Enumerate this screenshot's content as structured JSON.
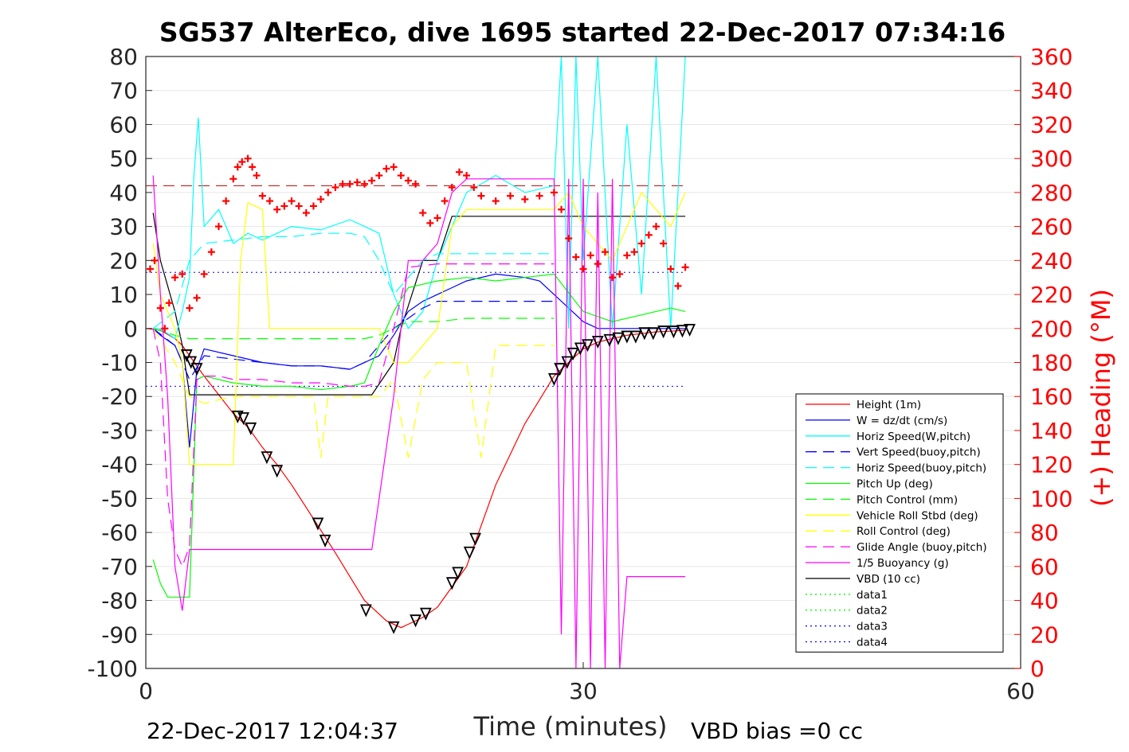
{
  "colors": {
    "height": "#ff0000",
    "w": "#0000ff",
    "horiz_w": "#00ffff",
    "pitch": "#00ff00",
    "roll": "#ffff00",
    "glide": "#ff00ff",
    "vbd": "#000000",
    "heading": "#ff0000",
    "grid": "#e6e6e6"
  },
  "chart_data": {
    "type": "line",
    "title": "SG537 AlterEco, dive 1695 started 22-Dec-2017 07:34:16",
    "xlabel": "Time (minutes)",
    "ylabel_right": "(+) Heading (°M)",
    "footer_left": "22-Dec-2017 12:04:37",
    "footer_right": "VBD bias =0 cc",
    "xlim": [
      0,
      60
    ],
    "ylim": [
      -100,
      80
    ],
    "ylim_right": [
      0,
      360
    ],
    "x_ticks": [
      0,
      30,
      60
    ],
    "y_ticks": [
      80,
      70,
      60,
      50,
      40,
      30,
      20,
      10,
      0,
      -10,
      -20,
      -30,
      -40,
      -50,
      -60,
      -70,
      -80,
      -90,
      -100
    ],
    "y_ticks_right": [
      360,
      340,
      320,
      300,
      280,
      260,
      240,
      220,
      200,
      180,
      160,
      140,
      120,
      100,
      80,
      60,
      40,
      20,
      0
    ],
    "grid": "horizontal",
    "legend_position": "lower-right",
    "legend": [
      {
        "label": "Height (1m)",
        "color": "#ff0000",
        "dash": "solid"
      },
      {
        "label": "W = dz/dt (cm/s)",
        "color": "#0000ff",
        "dash": "solid"
      },
      {
        "label": "Horiz Speed(W,pitch)",
        "color": "#00ffff",
        "dash": "solid"
      },
      {
        "label": "Vert Speed(buoy,pitch)",
        "color": "#0000ff",
        "dash": "dashed"
      },
      {
        "label": "Horiz Speed(buoy,pitch)",
        "color": "#00ffff",
        "dash": "dashed"
      },
      {
        "label": "Pitch Up (deg)",
        "color": "#00ff00",
        "dash": "solid"
      },
      {
        "label": "Pitch Control (mm)",
        "color": "#00ff00",
        "dash": "dashed"
      },
      {
        "label": "Vehicle Roll Stbd (deg)",
        "color": "#ffff00",
        "dash": "solid"
      },
      {
        "label": "Roll Control (deg)",
        "color": "#ffff00",
        "dash": "dashed"
      },
      {
        "label": "Glide Angle (buoy,pitch)",
        "color": "#ff00ff",
        "dash": "dashed"
      },
      {
        "label": "1/5 Buoyancy (g)",
        "color": "#ff00ff",
        "dash": "solid"
      },
      {
        "label": "VBD (10 cc)",
        "color": "#000000",
        "dash": "solid"
      },
      {
        "label": "data1",
        "color": "#00ff00",
        "dash": "dotted"
      },
      {
        "label": "data2",
        "color": "#00ff00",
        "dash": "dotted"
      },
      {
        "label": "data3",
        "color": "#0000ff",
        "dash": "dotted"
      },
      {
        "label": "data4",
        "color": "#0000ff",
        "dash": "dotted"
      }
    ],
    "series": [
      {
        "name": "Height (1m)",
        "color": "#ff0000",
        "dash": "solid",
        "x": [
          0,
          1,
          2,
          2.5,
          3,
          4,
          6,
          7,
          8,
          9,
          10,
          11.5,
          13,
          15,
          16.5,
          17.5,
          19,
          20,
          21,
          22,
          23,
          24,
          26,
          28,
          29,
          30,
          31,
          32,
          33,
          34,
          35,
          36,
          37
        ],
        "y": [
          0,
          -0.5,
          -3,
          -5,
          -8,
          -14,
          -25,
          -29,
          -35,
          -40,
          -46,
          -56,
          -66,
          -80,
          -86,
          -88,
          -85,
          -82,
          -76,
          -70,
          -58,
          -46,
          -28,
          -14,
          -10,
          -6,
          -4,
          -3,
          -2,
          -1.5,
          -1,
          -0.8,
          -0.5
        ]
      },
      {
        "name": "VBD (10 cc)",
        "color": "#000000",
        "dash": "solid",
        "x": [
          0.5,
          1,
          2,
          2.5,
          3,
          4,
          10,
          15,
          15.5,
          17,
          17.5,
          19,
          20,
          21,
          37
        ],
        "y": [
          34,
          20,
          5,
          -5,
          -19.5,
          -19.5,
          -19.5,
          -19.5,
          -19.5,
          -10,
          0,
          20,
          20,
          33,
          33
        ]
      },
      {
        "name": "W = dz/dt (cm/s)",
        "color": "#0000ff",
        "dash": "solid",
        "x": [
          0.5,
          1,
          2,
          2.5,
          3,
          3.5,
          4,
          6,
          8,
          10,
          12,
          14,
          15,
          16,
          17,
          18,
          19,
          20,
          21,
          22,
          24,
          26,
          27,
          28,
          29,
          30,
          31,
          32,
          34,
          36,
          37
        ],
        "y": [
          0,
          -2,
          -5,
          -10,
          -35,
          -12,
          -6,
          -8,
          -10,
          -11,
          -11,
          -12,
          -10,
          -8,
          -2,
          5,
          8,
          10,
          12,
          14,
          16,
          15,
          14,
          10,
          6,
          2,
          0,
          0,
          0,
          0,
          0
        ]
      },
      {
        "name": "Horiz Speed(W,pitch)",
        "color": "#00ffff",
        "dash": "solid",
        "x": [
          0.5,
          1,
          2,
          2.5,
          3,
          3.3,
          3.6,
          4,
          5,
          6,
          7,
          8,
          10,
          12,
          14,
          15,
          16,
          17,
          18,
          19,
          20,
          21,
          22,
          24,
          26,
          28,
          28.5,
          29,
          29.5,
          30,
          31,
          32,
          33,
          34,
          35,
          36,
          37
        ],
        "y": [
          0,
          0,
          -3,
          5,
          15,
          45,
          62,
          30,
          35,
          25,
          28,
          26,
          30,
          29,
          32,
          30,
          28,
          10,
          0,
          5,
          20,
          30,
          40,
          45,
          40,
          42,
          80,
          0,
          80,
          20,
          80,
          0,
          60,
          10,
          80,
          0,
          80
        ]
      },
      {
        "name": "Vert Speed(buoy,pitch)",
        "color": "#0000ff",
        "dash": "dashed",
        "x": [
          0.5,
          2,
          3,
          4,
          6,
          8,
          10,
          12,
          14,
          15,
          16,
          17,
          18,
          19,
          20,
          22,
          24,
          26,
          28
        ],
        "y": [
          0,
          -5,
          -15,
          -8,
          -9,
          -10,
          -11,
          -11,
          -12,
          -10,
          -5,
          0,
          3,
          6,
          8,
          8,
          8,
          8,
          8
        ]
      },
      {
        "name": "Horiz Speed(buoy,pitch)",
        "color": "#00ffff",
        "dash": "dashed",
        "x": [
          0.5,
          2,
          3,
          4,
          6,
          8,
          10,
          12,
          14,
          15,
          16,
          17,
          18,
          19,
          20,
          22,
          24,
          26,
          28
        ],
        "y": [
          0,
          5,
          20,
          25,
          26,
          27,
          27,
          28,
          28,
          27,
          20,
          10,
          15,
          20,
          22,
          22,
          22,
          22,
          22
        ]
      },
      {
        "name": "Pitch Up (deg)",
        "color": "#00ff00",
        "dash": "solid",
        "x": [
          0.5,
          1,
          1.5,
          2,
          2.5,
          3,
          3.5,
          4,
          6,
          8,
          10,
          12,
          14,
          15,
          16,
          17,
          18,
          19,
          20,
          22,
          24,
          26,
          28,
          30,
          32,
          34,
          36,
          37
        ],
        "y": [
          -68,
          -75,
          -79,
          -79,
          -79,
          -79,
          -15,
          -14,
          -16,
          -17,
          -17,
          -18,
          -17,
          -16,
          -5,
          5,
          12,
          13,
          14,
          15,
          14,
          15,
          16,
          5,
          2,
          4,
          6,
          5
        ]
      },
      {
        "name": "Pitch Control (mm)",
        "color": "#00ff00",
        "dash": "dashed",
        "x": [
          0.5,
          2,
          3,
          4,
          6,
          8,
          10,
          12,
          14,
          15,
          16,
          17,
          18,
          20,
          22,
          24,
          26,
          28
        ],
        "y": [
          0,
          -2,
          -3,
          -3,
          -3,
          -3,
          -3,
          -3,
          -3,
          -3,
          -2,
          0,
          2,
          2,
          3,
          3,
          3,
          3
        ]
      },
      {
        "name": "Vehicle Roll Stbd (deg)",
        "color": "#ffff00",
        "dash": "solid",
        "x": [
          0.5,
          1,
          2,
          2.5,
          3,
          4,
          6,
          6.5,
          7,
          8,
          8.5,
          9,
          12,
          14,
          15,
          16,
          17,
          18,
          19,
          20,
          21,
          22,
          24,
          26,
          28,
          29,
          30,
          32,
          34,
          36,
          37
        ],
        "y": [
          25,
          10,
          0,
          -10,
          -40,
          -40,
          -40,
          20,
          37,
          35,
          0,
          0,
          0,
          0,
          0,
          0,
          -10,
          -10,
          -5,
          0,
          30,
          35,
          35,
          35,
          35,
          40,
          30,
          20,
          40,
          30,
          40
        ]
      },
      {
        "name": "Roll Control (deg)",
        "color": "#ffff00",
        "dash": "dashed",
        "x": [
          0.5,
          2,
          3,
          4,
          6,
          8,
          10,
          11.5,
          12,
          12.5,
          14,
          16,
          17,
          18,
          19,
          20,
          21,
          22,
          23,
          24,
          26,
          28
        ],
        "y": [
          0,
          -10,
          -20,
          -22,
          -20,
          -20,
          -20,
          -20,
          -38,
          -20,
          -20,
          -20,
          -15,
          -38,
          -15,
          -10,
          -10,
          -10,
          -38,
          -5,
          -5,
          -5
        ]
      },
      {
        "name": "Glide Angle (buoy,pitch)",
        "color": "#ff00ff",
        "dash": "dashed",
        "x": [
          0.5,
          1,
          1.5,
          2,
          2.5,
          3,
          3.5,
          4,
          5,
          6,
          8,
          10,
          12,
          14,
          15,
          16,
          17,
          18,
          20,
          22,
          24,
          26,
          28
        ],
        "y": [
          0,
          -10,
          -50,
          -65,
          -70,
          -64,
          -15,
          -14,
          -14,
          -15,
          -15,
          -16,
          -16,
          -17,
          -17,
          -16,
          0,
          18,
          19,
          19,
          19,
          19,
          19
        ]
      },
      {
        "name": "1/5 Buoyancy (g)",
        "color": "#ff00ff",
        "dash": "solid",
        "x": [
          0.5,
          1,
          1.5,
          2,
          2.5,
          3,
          3.5,
          4,
          8,
          12,
          15,
          15.5,
          17,
          18,
          19,
          20,
          21,
          22,
          24,
          26,
          28,
          28.5,
          29,
          29.5,
          30,
          30.5,
          31,
          31.5,
          32,
          32.5,
          33,
          33.5,
          34,
          37
        ],
        "y": [
          45,
          10,
          -20,
          -70,
          -83,
          -65,
          -65,
          -65,
          -65,
          -65,
          -65,
          -65,
          -20,
          20,
          20,
          25,
          40,
          44,
          44,
          44,
          44,
          -90,
          44,
          -100,
          44,
          -100,
          40,
          -100,
          44,
          -100,
          -73,
          -73,
          -73,
          -73
        ]
      }
    ],
    "reference_lines": [
      {
        "y": 42,
        "color": "#c00000",
        "dash": "dashed",
        "x0": 0,
        "x1": 37
      },
      {
        "y": 16.5,
        "color": "#0000ff",
        "dash": "dotted",
        "x0": 0,
        "x1": 37
      },
      {
        "y": -17,
        "color": "#0000ff",
        "dash": "dotted",
        "x0": 0,
        "x1": 37
      }
    ],
    "heading_points": {
      "x": [
        0.3,
        0.6,
        1,
        1.3,
        1.6,
        2,
        2.5,
        3,
        3.5,
        4,
        4.5,
        5,
        5.5,
        6,
        6.3,
        6.6,
        7,
        7.3,
        7.6,
        8,
        8.5,
        9,
        9.5,
        10,
        10.5,
        11,
        11.5,
        12,
        12.5,
        13,
        13.5,
        14,
        14.5,
        15,
        15.5,
        16,
        16.5,
        17,
        17.5,
        18,
        18.5,
        19,
        19.5,
        20,
        20.5,
        21,
        21.5,
        22,
        22.5,
        23,
        24,
        25,
        26,
        27,
        28,
        28.5,
        29,
        29.5,
        30,
        30.5,
        31,
        31.5,
        32,
        32.5,
        33,
        33.5,
        34,
        34.5,
        35,
        35.5,
        36,
        36.5,
        37
      ],
      "y": [
        235,
        240,
        212,
        200,
        215,
        230,
        232,
        212,
        218,
        232,
        245,
        260,
        275,
        288,
        295,
        298,
        300,
        295,
        290,
        278,
        275,
        270,
        272,
        275,
        272,
        268,
        272,
        276,
        280,
        283,
        285,
        285,
        286,
        285,
        287,
        290,
        294,
        295,
        290,
        287,
        285,
        268,
        262,
        265,
        275,
        283,
        292,
        290,
        283,
        278,
        275,
        278,
        276,
        278,
        280,
        270,
        253,
        242,
        235,
        243,
        238,
        245,
        230,
        232,
        243,
        245,
        250,
        255,
        260,
        250,
        235,
        225,
        236
      ]
    },
    "height_markers": {
      "x": [
        2.8,
        3.1,
        3.5,
        6.3,
        6.7,
        7.2,
        8.3,
        9,
        11.8,
        12.3,
        15.1,
        17,
        18.5,
        19.2,
        21,
        21.4,
        22.2,
        22.6,
        28,
        28.4,
        28.9,
        29.3,
        29.8,
        30.3,
        31,
        31.8,
        32.4,
        33,
        33.6,
        34.2,
        34.8,
        35.5,
        36.2,
        36.8,
        37.3
      ],
      "y": [
        -8,
        -10,
        -12,
        -26,
        -26.5,
        -29.5,
        -38,
        -42,
        -57.5,
        -62.5,
        -83,
        -88,
        -86,
        -84,
        -75,
        -72,
        -66,
        -62,
        -15,
        -12,
        -10,
        -7.5,
        -6,
        -5,
        -4,
        -3.5,
        -3,
        -2.5,
        -2.5,
        -1.5,
        -1.5,
        -1,
        -1,
        -0.8,
        -0.5
      ]
    }
  }
}
